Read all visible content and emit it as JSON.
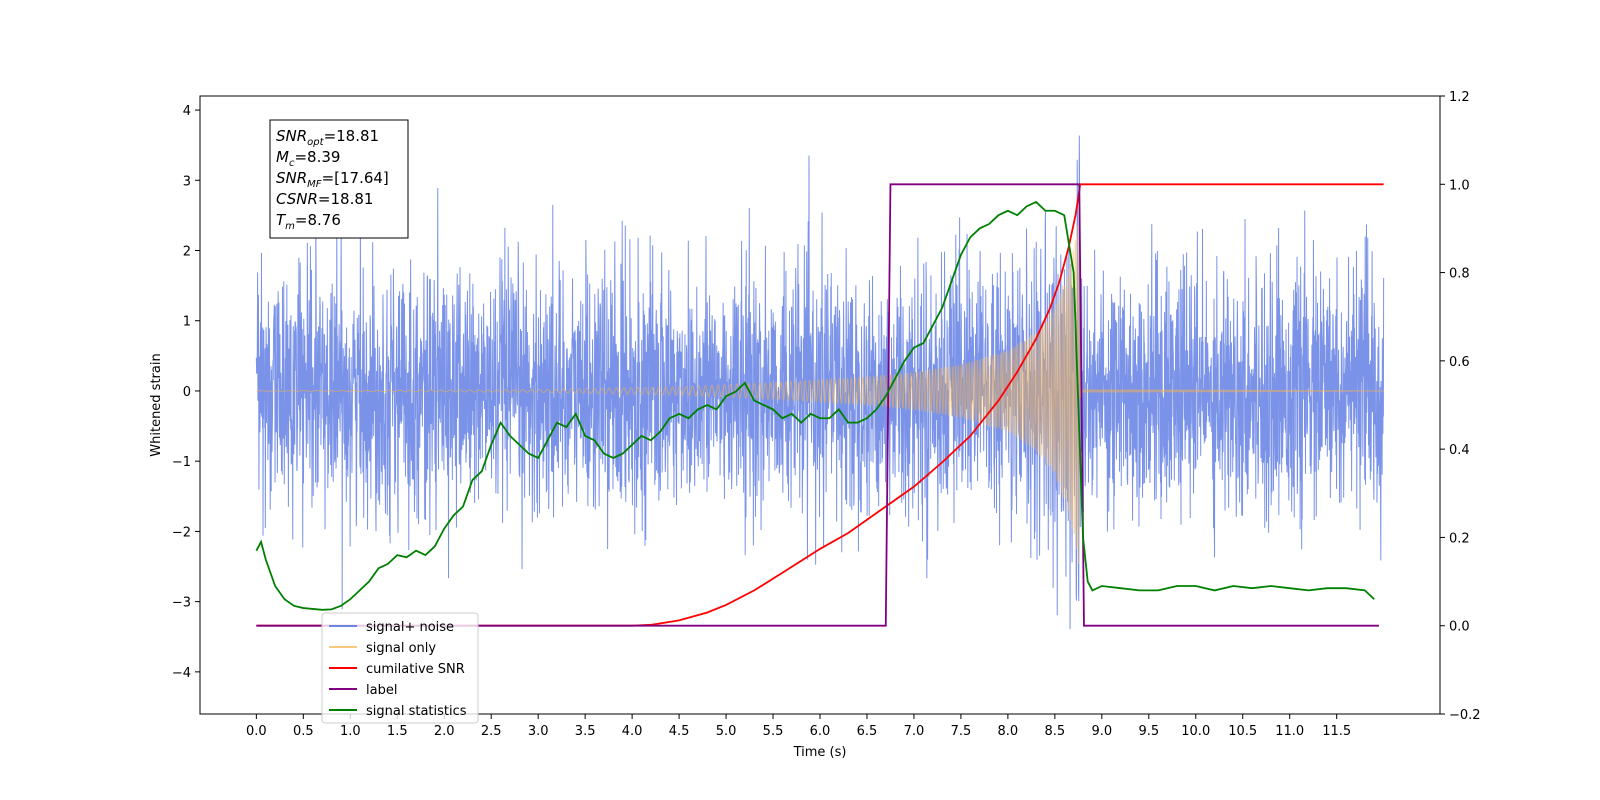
{
  "chart_data": {
    "type": "line",
    "title": "",
    "xlabel": "Time (s)",
    "ylabel": "Whitened strain",
    "xlim": [
      -0.6,
      12.6
    ],
    "ylim": [
      -4.6,
      4.2
    ],
    "y2lim": [
      -0.2,
      1.2
    ],
    "grid": false,
    "legend_position": "bottom-left",
    "x_ticks": [
      "0.0",
      "0.5",
      "1.0",
      "1.5",
      "2.0",
      "2.5",
      "3.0",
      "3.5",
      "4.0",
      "4.5",
      "5.0",
      "5.5",
      "6.0",
      "6.5",
      "7.0",
      "7.5",
      "8.0",
      "8.5",
      "9.0",
      "9.5",
      "10.0",
      "10.5",
      "11.0",
      "11.5"
    ],
    "y_ticks": [
      "4",
      "3",
      "2",
      "1",
      "0",
      "−1",
      "−2",
      "−3",
      "−4"
    ],
    "y2_ticks": [
      "1.2",
      "1.0",
      "0.8",
      "0.6",
      "0.4",
      "0.2",
      "0.0",
      "−0.2"
    ],
    "info_box": [
      {
        "base": "SNR",
        "sub": "opt",
        "rest": "=18.81"
      },
      {
        "base": "M",
        "sub": "c",
        "rest": "=8.39"
      },
      {
        "base": "SNR",
        "sub": "MF",
        "rest": "=[17.64]"
      },
      {
        "base": "CSNR",
        "sub": "",
        "rest": "=18.81"
      },
      {
        "base": "T",
        "sub": "m",
        "rest": "=8.76"
      }
    ],
    "noise": {
      "t_start": 0.0,
      "t_end": 12.0,
      "sigma": 0.85,
      "peak_max": 3.8,
      "peak_min": -4.1
    },
    "signal_envelope": [
      [
        0.0,
        0.002
      ],
      [
        3.0,
        0.02
      ],
      [
        4.5,
        0.06
      ],
      [
        5.5,
        0.12
      ],
      [
        6.5,
        0.2
      ],
      [
        7.0,
        0.27
      ],
      [
        7.5,
        0.38
      ],
      [
        8.0,
        0.58
      ],
      [
        8.3,
        0.85
      ],
      [
        8.5,
        1.2
      ],
      [
        8.65,
        1.75
      ],
      [
        8.76,
        2.6
      ],
      [
        8.77,
        0.02
      ],
      [
        12.0,
        0.002
      ]
    ],
    "series": [
      {
        "name": "signal+ noise",
        "color": "#6b87e6",
        "axis": "left"
      },
      {
        "name": "signal only",
        "color": "#f8b24a",
        "axis": "left"
      },
      {
        "name": "cumilative SNR",
        "color": "#ff0000",
        "axis": "right",
        "x": [
          0.0,
          3.0,
          4.0,
          4.2,
          4.5,
          4.8,
          5.0,
          5.3,
          5.6,
          6.0,
          6.3,
          6.6,
          7.0,
          7.3,
          7.6,
          7.9,
          8.1,
          8.3,
          8.45,
          8.55,
          8.65,
          8.72,
          8.76,
          8.77,
          12.0
        ],
        "y": [
          0.0,
          0.0,
          0.0,
          0.002,
          0.012,
          0.03,
          0.047,
          0.08,
          0.12,
          0.174,
          0.21,
          0.255,
          0.315,
          0.37,
          0.43,
          0.51,
          0.575,
          0.65,
          0.72,
          0.78,
          0.86,
          0.93,
          0.985,
          1.0,
          1.0
        ]
      },
      {
        "name": "label",
        "color": "#800080",
        "axis": "right",
        "x": [
          0.0,
          6.7,
          6.75,
          8.76,
          8.81,
          11.95
        ],
        "y": [
          0.0,
          0.0,
          1.0,
          1.0,
          0.0,
          0.0
        ]
      },
      {
        "name": "signal statistics",
        "color": "#008000",
        "axis": "right",
        "x": [
          0.0,
          0.05,
          0.1,
          0.2,
          0.3,
          0.4,
          0.5,
          0.6,
          0.7,
          0.8,
          0.9,
          1.0,
          1.1,
          1.2,
          1.3,
          1.4,
          1.5,
          1.6,
          1.7,
          1.8,
          1.9,
          2.0,
          2.1,
          2.2,
          2.3,
          2.4,
          2.5,
          2.6,
          2.7,
          2.8,
          2.9,
          3.0,
          3.1,
          3.2,
          3.3,
          3.4,
          3.5,
          3.6,
          3.7,
          3.8,
          3.9,
          4.0,
          4.1,
          4.2,
          4.3,
          4.4,
          4.5,
          4.6,
          4.7,
          4.8,
          4.9,
          5.0,
          5.1,
          5.2,
          5.3,
          5.4,
          5.5,
          5.6,
          5.7,
          5.8,
          5.9,
          6.0,
          6.1,
          6.2,
          6.3,
          6.4,
          6.5,
          6.6,
          6.7,
          6.8,
          6.9,
          7.0,
          7.1,
          7.2,
          7.3,
          7.4,
          7.5,
          7.6,
          7.7,
          7.8,
          7.9,
          8.0,
          8.1,
          8.2,
          8.3,
          8.4,
          8.5,
          8.6,
          8.7,
          8.75,
          8.8,
          8.85,
          8.9,
          9.0,
          9.2,
          9.4,
          9.6,
          9.8,
          10.0,
          10.2,
          10.4,
          10.6,
          10.8,
          11.0,
          11.2,
          11.4,
          11.6,
          11.8,
          11.9
        ],
        "y": [
          0.17,
          0.19,
          0.15,
          0.09,
          0.06,
          0.045,
          0.04,
          0.038,
          0.036,
          0.037,
          0.045,
          0.06,
          0.08,
          0.1,
          0.13,
          0.14,
          0.16,
          0.155,
          0.17,
          0.16,
          0.18,
          0.22,
          0.25,
          0.27,
          0.33,
          0.35,
          0.41,
          0.46,
          0.43,
          0.41,
          0.39,
          0.38,
          0.42,
          0.46,
          0.45,
          0.48,
          0.43,
          0.42,
          0.39,
          0.38,
          0.39,
          0.41,
          0.43,
          0.42,
          0.44,
          0.47,
          0.48,
          0.47,
          0.49,
          0.5,
          0.49,
          0.52,
          0.53,
          0.55,
          0.51,
          0.5,
          0.49,
          0.47,
          0.48,
          0.46,
          0.48,
          0.47,
          0.47,
          0.49,
          0.46,
          0.46,
          0.47,
          0.49,
          0.52,
          0.56,
          0.6,
          0.63,
          0.64,
          0.68,
          0.72,
          0.78,
          0.84,
          0.88,
          0.9,
          0.91,
          0.93,
          0.94,
          0.93,
          0.95,
          0.96,
          0.94,
          0.94,
          0.93,
          0.8,
          0.5,
          0.2,
          0.1,
          0.08,
          0.09,
          0.085,
          0.08,
          0.08,
          0.09,
          0.09,
          0.08,
          0.09,
          0.085,
          0.09,
          0.085,
          0.08,
          0.085,
          0.085,
          0.08,
          0.06
        ]
      }
    ],
    "legend_labels": [
      "signal+ noise",
      "signal only",
      "cumilative SNR",
      "label",
      "signal statistics"
    ]
  }
}
